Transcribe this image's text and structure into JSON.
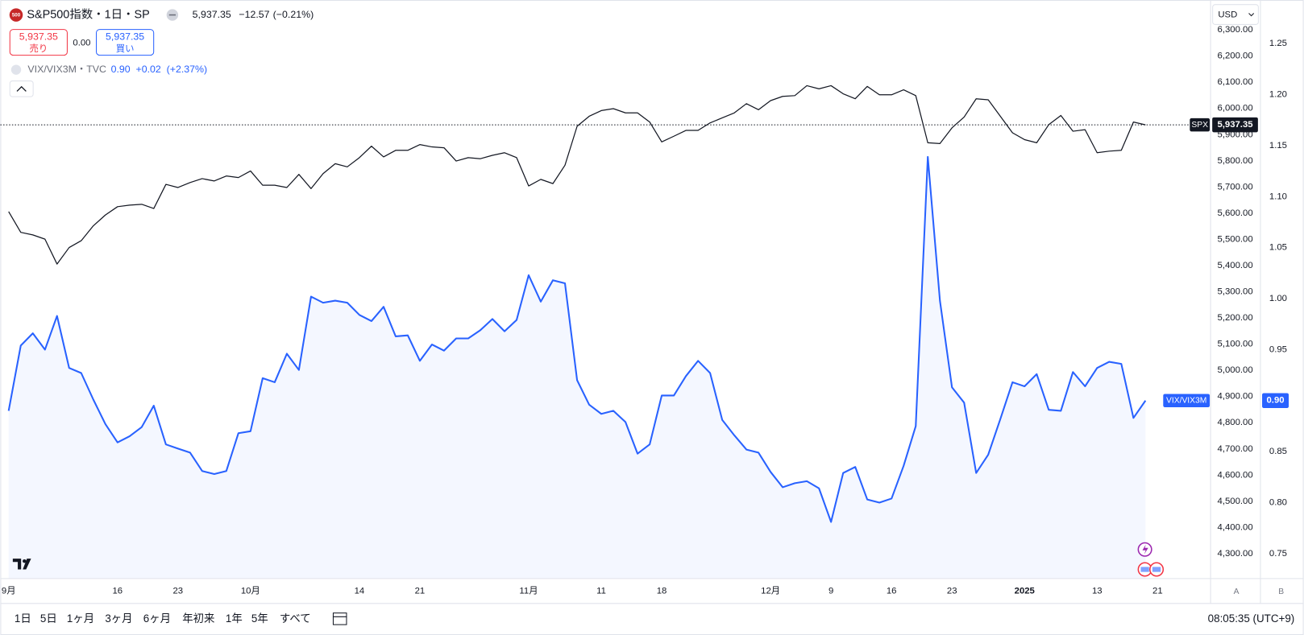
{
  "header": {
    "badge": "500",
    "symbol": "S&P500指数・1日・SP",
    "price": "5,937.35",
    "change": "−12.57",
    "change_pct": "(−0.21%)",
    "sell_price": "5,937.35",
    "sell": "売り",
    "spread": "0.00",
    "buy_price": "5,937.35",
    "buy": "買い",
    "overlay": "VIX/VIX3M・TVC",
    "overlay_price": "0.90",
    "overlay_change": "+0.02",
    "overlay_change_pct": "(+2.37%)",
    "currency": "USD"
  },
  "chart_data": {
    "type": "line",
    "categories": [
      "9月",
      null,
      null,
      null,
      null,
      null,
      null,
      null,
      null,
      "16",
      null,
      null,
      null,
      null,
      "23",
      null,
      null,
      null,
      null,
      null,
      "10月",
      null,
      null,
      null,
      null,
      null,
      null,
      null,
      null,
      "14",
      null,
      null,
      null,
      null,
      "21",
      null,
      null,
      null,
      null,
      null,
      null,
      null,
      null,
      "11月",
      null,
      null,
      null,
      null,
      null,
      "11",
      null,
      null,
      null,
      null,
      "18",
      null,
      null,
      null,
      null,
      null,
      null,
      null,
      null,
      "12月",
      null,
      null,
      null,
      null,
      "9",
      null,
      null,
      null,
      null,
      "16",
      null,
      null,
      null,
      null,
      "23",
      null,
      null,
      null,
      null,
      null,
      "2025",
      null,
      null,
      null,
      null,
      null,
      "13",
      null,
      null,
      null,
      null,
      "21"
    ],
    "series": [
      {
        "name": "SPX",
        "color": "#131722",
        "axis": "y",
        "values": [
          5606,
          5527,
          5517,
          5501,
          5406,
          5469,
          5495,
          5552,
          5593,
          5625,
          5631,
          5634,
          5618,
          5710,
          5698,
          5717,
          5732,
          5723,
          5742,
          5736,
          5761,
          5707,
          5707,
          5698,
          5748,
          5694,
          5751,
          5789,
          5777,
          5812,
          5856,
          5815,
          5840,
          5840,
          5862,
          5853,
          5850,
          5799,
          5812,
          5808,
          5821,
          5831,
          5812,
          5704,
          5729,
          5713,
          5783,
          5932,
          5970,
          5992,
          5999,
          5983,
          5983,
          5948,
          5872,
          5894,
          5916,
          5916,
          5945,
          5964,
          5983,
          6018,
          5995,
          6030,
          6046,
          6049,
          6087,
          6075,
          6087,
          6056,
          6037,
          6084,
          6052,
          6052,
          6071,
          6049,
          5869,
          5866,
          5926,
          5967,
          6037,
          6033,
          5970,
          5907,
          5881,
          5869,
          5938,
          5973,
          5913,
          5919,
          5831,
          5837,
          5840,
          5948,
          5937.35,
          null
        ],
        "value_labels": [
          null,
          null,
          null,
          null,
          null,
          null,
          null,
          null,
          null,
          null,
          null,
          null,
          null,
          null,
          null,
          null,
          null,
          null,
          null,
          null,
          null,
          null,
          null,
          null,
          null,
          null,
          null,
          null,
          null,
          null,
          null,
          null,
          null,
          null,
          null,
          null,
          null,
          null,
          null,
          null,
          null,
          null,
          null,
          null,
          null,
          null,
          null,
          null,
          null,
          null,
          null,
          null,
          null,
          null,
          null,
          null,
          null,
          null,
          null,
          null,
          null,
          null,
          null,
          null,
          null,
          null,
          null,
          null,
          null,
          null,
          null,
          null,
          null,
          null,
          null,
          null,
          null,
          null,
          null,
          null,
          null,
          null,
          null,
          null,
          null,
          null,
          null,
          null,
          null,
          null,
          null,
          null,
          null,
          null,
          "5,937.35",
          null
        ]
      },
      {
        "name": "VIX/VIX3M",
        "color": "#2962ff",
        "axis": "y2",
        "area": true,
        "values": [
          0.89,
          0.954,
          0.966,
          0.95,
          0.983,
          0.932,
          0.927,
          0.901,
          0.877,
          0.859,
          0.865,
          0.874,
          0.895,
          0.857,
          0.853,
          0.849,
          0.831,
          0.828,
          0.831,
          0.868,
          0.87,
          0.922,
          0.918,
          0.946,
          0.93,
          1.002,
          0.996,
          0.998,
          0.996,
          0.984,
          0.978,
          0.992,
          0.963,
          0.964,
          0.939,
          0.955,
          0.949,
          0.961,
          0.961,
          0.969,
          0.98,
          0.968,
          0.979,
          1.023,
          0.997,
          1.018,
          1.015,
          0.92,
          0.896,
          0.887,
          0.89,
          0.879,
          0.848,
          0.857,
          0.905,
          0.905,
          0.924,
          0.939,
          0.927,
          0.881,
          0.866,
          0.852,
          0.849,
          0.83,
          0.815,
          0.819,
          0.821,
          0.814,
          0.781,
          0.829,
          0.835,
          0.803,
          0.8,
          0.804,
          0.836,
          0.875,
          1.139,
          0.998,
          0.913,
          0.898,
          0.829,
          0.847,
          0.882,
          0.918,
          0.914,
          0.926,
          0.891,
          0.89,
          0.928,
          0.914,
          0.932,
          0.938,
          0.936,
          0.883,
          0.9,
          null
        ],
        "value_labels": [
          null,
          null,
          null,
          null,
          null,
          null,
          null,
          null,
          null,
          null,
          null,
          null,
          null,
          null,
          null,
          null,
          null,
          null,
          null,
          null,
          null,
          null,
          null,
          null,
          null,
          null,
          null,
          null,
          null,
          null,
          null,
          null,
          null,
          null,
          null,
          null,
          null,
          null,
          null,
          null,
          null,
          null,
          null,
          null,
          null,
          null,
          null,
          null,
          null,
          null,
          null,
          null,
          null,
          null,
          null,
          null,
          null,
          null,
          null,
          null,
          null,
          null,
          null,
          null,
          null,
          null,
          null,
          null,
          null,
          null,
          null,
          null,
          null,
          null,
          null,
          null,
          null,
          null,
          null,
          null,
          null,
          null,
          null,
          null,
          null,
          null,
          null,
          null,
          null,
          null,
          null,
          null,
          null,
          null,
          "0.90",
          null
        ]
      }
    ],
    "ylim": [
      4205,
      6414
    ],
    "yticks": [
      {
        "value": 4300,
        "label": "4,300.00"
      },
      {
        "value": 4400,
        "label": "4,400.00"
      },
      {
        "value": 4500,
        "label": "4,500.00"
      },
      {
        "value": 4600,
        "label": "4,600.00"
      },
      {
        "value": 4700,
        "label": "4,700.00"
      },
      {
        "value": 4800,
        "label": "4,800.00"
      },
      {
        "value": 4900,
        "label": "4,900.00"
      },
      {
        "value": 5000,
        "label": "5,000.00"
      },
      {
        "value": 5100,
        "label": "5,100.00"
      },
      {
        "value": 5200,
        "label": "5,200.00"
      },
      {
        "value": 5300,
        "label": "5,300.00"
      },
      {
        "value": 5400,
        "label": "5,400.00"
      },
      {
        "value": 5500,
        "label": "5,500.00"
      },
      {
        "value": 5600,
        "label": "5,600.00"
      },
      {
        "value": 5700,
        "label": "5,700.00"
      },
      {
        "value": 5800,
        "label": "5,800.00"
      },
      {
        "value": 5900,
        "label": "5,900.00"
      },
      {
        "value": 6000,
        "label": "6,000.00"
      },
      {
        "value": 6100,
        "label": "6,100.00"
      },
      {
        "value": 6200,
        "label": "6,200.00"
      },
      {
        "value": 6300,
        "label": "6,300.00"
      }
    ],
    "y2lim": [
      0.7255,
      1.2928
    ],
    "y2ticks": [
      0.75,
      {
        "value": 0.8,
        "label": "0.80"
      },
      0.85,
      {
        "value": 0.9,
        "label": "0.90"
      },
      0.95,
      {
        "value": 1.0,
        "label": "1.00"
      },
      1.05,
      {
        "value": 1.1,
        "label": "1.10"
      },
      1.15,
      {
        "value": 1.2,
        "label": "1.20"
      },
      1.25
    ],
    "grid": false,
    "price_line": true
  },
  "toolbar": {
    "ranges": [
      "1日",
      "5日",
      "1ヶ月",
      "3ヶ月",
      "6ヶ月",
      "年初来",
      "1年",
      "5年",
      "すべて"
    ],
    "clock": "08:05:35 (UTC+9)",
    "scale_buttons": [
      "A",
      "B"
    ]
  }
}
